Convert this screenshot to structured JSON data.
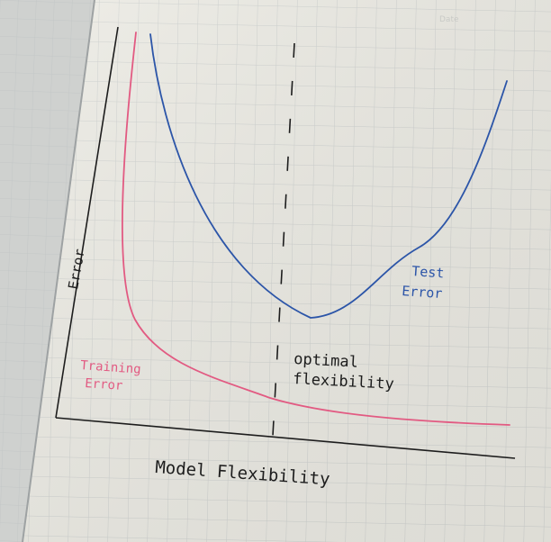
{
  "labels": {
    "y_axis": "Error",
    "x_axis": "Model Flexibility",
    "test_line1": "Test",
    "test_line2": "Error",
    "training_line1": "Training",
    "training_line2": "Error",
    "optimal_line1": "optimal",
    "optimal_line2": "flexibility",
    "corner_mark": "Date"
  },
  "colors": {
    "page": "#ecebe4",
    "grid": "#c9cbc9",
    "ink": "#1d1d1d",
    "test_curve": "#2c55a8",
    "training_curve": "#e25a82"
  }
}
